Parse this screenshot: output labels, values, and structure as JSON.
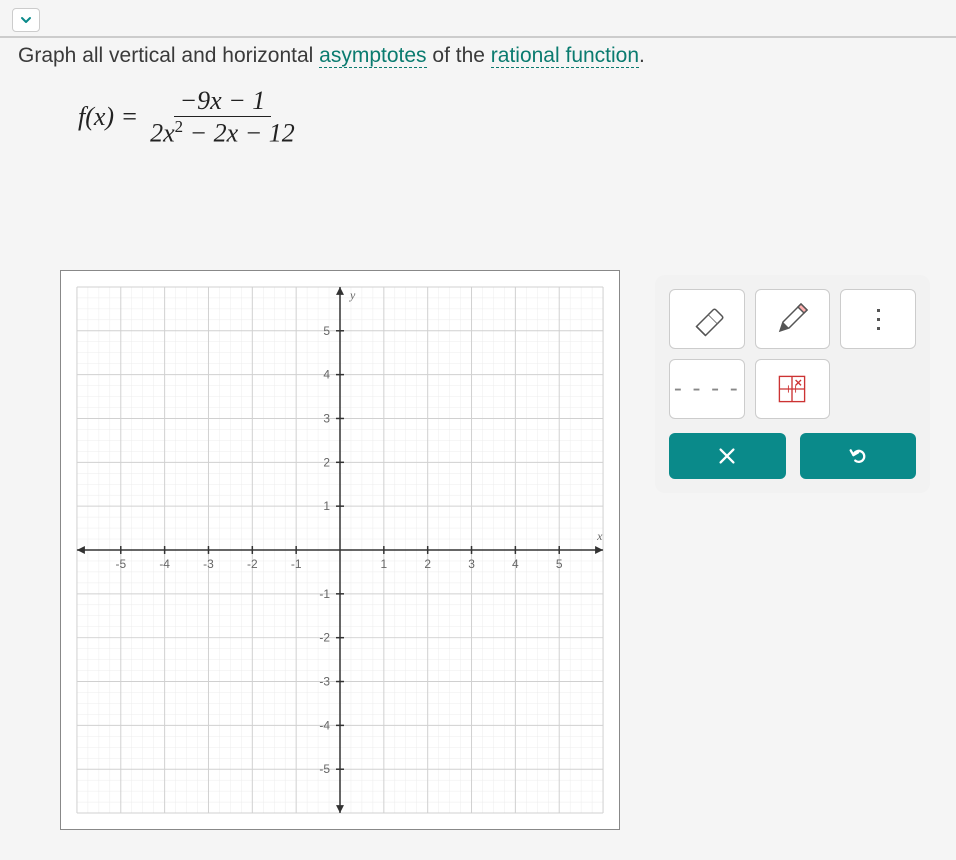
{
  "prompt": {
    "prefix": "Graph all vertical and horizontal ",
    "link1": "asymptotes",
    "middle": " of the ",
    "link2": "rational function",
    "suffix": "."
  },
  "equation": {
    "lhs": "f(x) =",
    "numerator": "−9x − 1",
    "denom_a": "2x",
    "denom_exp": "2",
    "denom_b": " − 2x − 12"
  },
  "graph": {
    "xmin": -6,
    "xmax": 6,
    "ymin": -6,
    "ymax": 6,
    "tick_step": 1,
    "label_ticks_x": [
      -5,
      -4,
      -3,
      -2,
      -1,
      1,
      2,
      3,
      4,
      5
    ],
    "label_ticks_y": [
      -5,
      -4,
      -3,
      -2,
      -1,
      1,
      2,
      3,
      4,
      5
    ],
    "x_axis_label": "x",
    "y_axis_label": "y",
    "axis_color": "#333333",
    "grid_color": "#d0d0d0",
    "minor_grid_color": "#ececec",
    "tick_label_color": "#666666",
    "tick_fontsize": 12,
    "background": "#ffffff"
  },
  "toolbox": {
    "eraser_name": "eraser",
    "pencil_name": "pencil",
    "more_name": "more",
    "dashed_name": "dashed-line",
    "point_name": "point-plot",
    "clear_label": "×",
    "undo_label": "↶",
    "action_bg": "#0a8a8a"
  }
}
